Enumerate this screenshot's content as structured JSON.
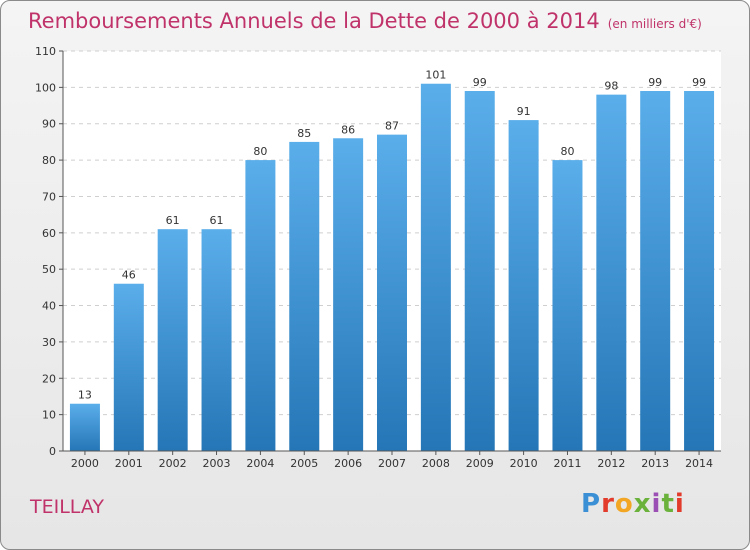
{
  "header": {
    "title": "Remboursements Annuels de la Dette de 2000 à 2014",
    "unit": "(en milliers d'€)"
  },
  "footer": {
    "commune": "TEILLAY",
    "logo": "Proxiti"
  },
  "colors": {
    "title": "#c0336a",
    "bar_top": "#5aaeea",
    "bar_bottom": "#2576b6"
  },
  "chart_data": {
    "type": "bar",
    "title": "Remboursements Annuels de la Dette de 2000 à 2014",
    "subtitle": "(en milliers d'€)",
    "xlabel": "",
    "ylabel": "",
    "categories": [
      "2000",
      "2001",
      "2002",
      "2003",
      "2004",
      "2005",
      "2006",
      "2007",
      "2008",
      "2009",
      "2010",
      "2011",
      "2012",
      "2013",
      "2014"
    ],
    "values": [
      13,
      46,
      61,
      61,
      80,
      85,
      86,
      87,
      101,
      99,
      91,
      80,
      98,
      99,
      99
    ],
    "ylim": [
      0,
      110
    ],
    "yticks": [
      0,
      10,
      20,
      30,
      40,
      50,
      60,
      70,
      80,
      90,
      100,
      110
    ],
    "grid": true,
    "data_labels": true
  }
}
